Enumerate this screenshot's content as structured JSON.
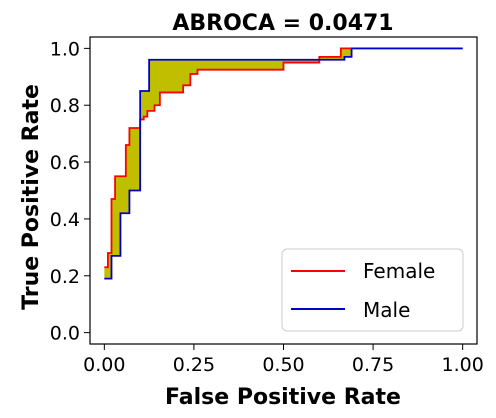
{
  "chart_data": {
    "type": "line",
    "title": "ABROCA = 0.0471",
    "xlabel": "False Positive Rate",
    "ylabel": "True Positive Rate",
    "xlim": [
      -0.04,
      1.04
    ],
    "ylim": [
      -0.04,
      1.04
    ],
    "x_ticks": [
      0.0,
      0.25,
      0.5,
      0.75,
      1.0
    ],
    "x_tick_labels": [
      "0.00",
      "0.25",
      "0.50",
      "0.75",
      "1.00"
    ],
    "y_ticks": [
      0.0,
      0.2,
      0.4,
      0.6,
      0.8,
      1.0
    ],
    "y_tick_labels": [
      "0.0",
      "0.2",
      "0.4",
      "0.6",
      "0.8",
      "1.0"
    ],
    "grid": false,
    "legend_position": "lower-right",
    "fill_between_color": "#bfbf00",
    "series": [
      {
        "name": "Female",
        "color": "#ff0000",
        "points": [
          [
            0,
            0.23
          ],
          [
            0.01,
            0.23
          ],
          [
            0.01,
            0.28
          ],
          [
            0.02,
            0.28
          ],
          [
            0.02,
            0.47
          ],
          [
            0.03,
            0.47
          ],
          [
            0.03,
            0.55
          ],
          [
            0.06,
            0.55
          ],
          [
            0.06,
            0.66
          ],
          [
            0.07,
            0.66
          ],
          [
            0.07,
            0.72
          ],
          [
            0.09,
            0.72
          ],
          [
            0.09,
            0.72
          ],
          [
            0.1,
            0.72
          ],
          [
            0.1,
            0.75
          ],
          [
            0.11,
            0.75
          ],
          [
            0.11,
            0.76
          ],
          [
            0.12,
            0.76
          ],
          [
            0.12,
            0.78
          ],
          [
            0.14,
            0.78
          ],
          [
            0.14,
            0.8
          ],
          [
            0.155,
            0.8
          ],
          [
            0.155,
            0.845
          ],
          [
            0.22,
            0.845
          ],
          [
            0.22,
            0.87
          ],
          [
            0.24,
            0.87
          ],
          [
            0.24,
            0.91
          ],
          [
            0.26,
            0.91
          ],
          [
            0.26,
            0.925
          ],
          [
            0.5,
            0.925
          ],
          [
            0.5,
            0.95
          ],
          [
            0.6,
            0.95
          ],
          [
            0.6,
            0.97
          ],
          [
            0.66,
            0.97
          ],
          [
            0.66,
            1.0
          ],
          [
            1.0,
            1.0
          ]
        ]
      },
      {
        "name": "Male",
        "color": "#0000cc",
        "points": [
          [
            0,
            0.19
          ],
          [
            0.02,
            0.19
          ],
          [
            0.02,
            0.27
          ],
          [
            0.045,
            0.27
          ],
          [
            0.045,
            0.42
          ],
          [
            0.07,
            0.42
          ],
          [
            0.07,
            0.5
          ],
          [
            0.1,
            0.5
          ],
          [
            0.1,
            0.85
          ],
          [
            0.125,
            0.85
          ],
          [
            0.125,
            0.96
          ],
          [
            0.67,
            0.96
          ],
          [
            0.67,
            0.97
          ],
          [
            0.69,
            0.97
          ],
          [
            0.69,
            1.0
          ],
          [
            1.0,
            1.0
          ]
        ]
      }
    ]
  }
}
